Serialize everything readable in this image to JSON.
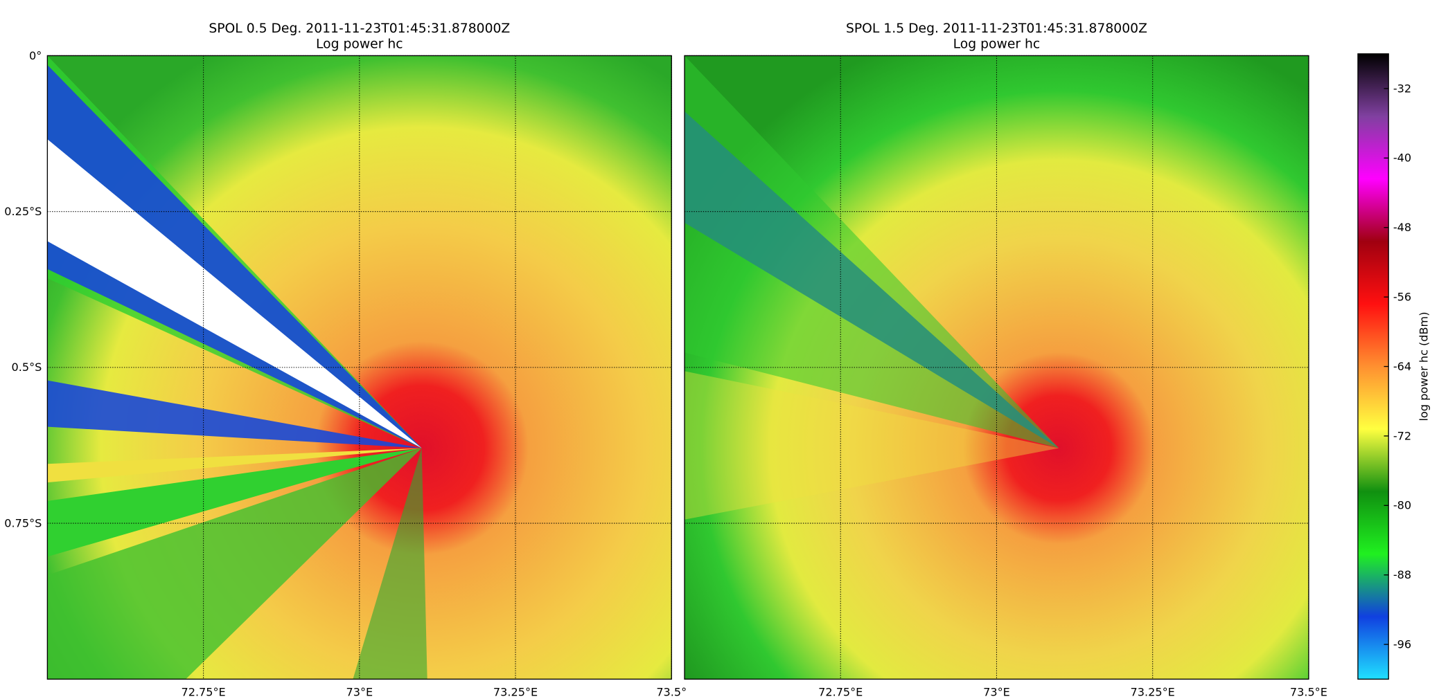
{
  "chart_data": [
    {
      "type": "heatmap",
      "title": "SPOL 0.5 Deg. 2011-11-23T01:45:31.878000Z",
      "subtitle": "Log power hc",
      "xlim": [
        72.5,
        73.5
      ],
      "ylim": [
        -1.0,
        0
      ],
      "xticks": [
        {
          "value": 72.75,
          "label": "72.75°E"
        },
        {
          "value": 73,
          "label": "73°E"
        },
        {
          "value": 73.25,
          "label": "73.25°E"
        },
        {
          "value": 73.5,
          "label": "73.5°"
        }
      ],
      "yticks": [
        {
          "value": 0,
          "label": "0°"
        },
        {
          "value": -0.25,
          "label": "0.25°S"
        },
        {
          "value": -0.5,
          "label": "0.5°S"
        },
        {
          "value": -0.75,
          "label": "0.75°S"
        }
      ],
      "grid": true
    },
    {
      "type": "heatmap",
      "title": "SPOL 1.5 Deg. 2011-11-23T01:45:31.878000Z",
      "subtitle": "Log power hc",
      "xlim": [
        72.5,
        73.5
      ],
      "ylim": [
        -1.0,
        0
      ],
      "xticks": [
        {
          "value": 72.75,
          "label": "72.75°E"
        },
        {
          "value": 73,
          "label": "73°E"
        },
        {
          "value": 73.25,
          "label": "73.25°E"
        },
        {
          "value": 73.5,
          "label": "73.5°E"
        }
      ],
      "grid": true
    }
  ],
  "colorbar": {
    "label": "log power hc (dBm)",
    "lim": [
      -100,
      -28
    ],
    "ticks": [
      -32,
      -40,
      -48,
      -56,
      -64,
      -72,
      -80,
      -88,
      -96
    ],
    "colors": [
      "#000000",
      "#8040a0",
      "#ff00ff",
      "#a00010",
      "#ff1010",
      "#ff9030",
      "#ffff40",
      "#109010",
      "#20f020",
      "#1040e0",
      "#20e0ff"
    ]
  }
}
